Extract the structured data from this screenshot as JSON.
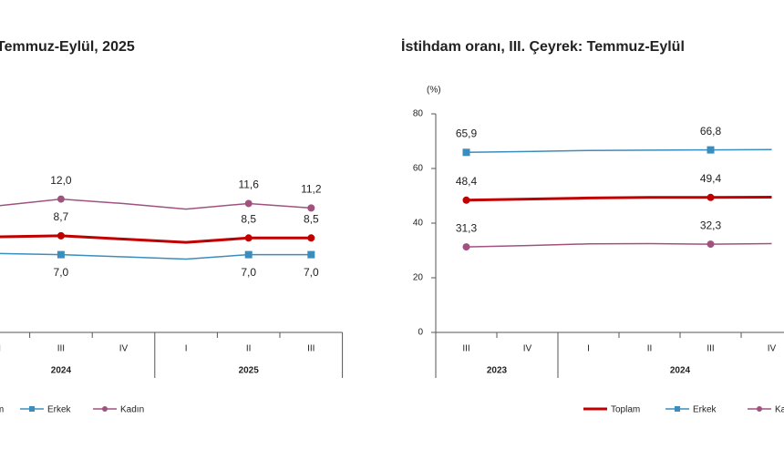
{
  "chart_data": [
    {
      "type": "line",
      "title": "Temmuz-Eylül, 2025",
      "categories": [
        "II",
        "III",
        "IV",
        "I",
        "II",
        "III"
      ],
      "x_groups": [
        "2024",
        "2024",
        "2024",
        "2025",
        "2025",
        "2025"
      ],
      "ylim": [
        0,
        25
      ],
      "series": [
        {
          "name": "Toplam",
          "color": "#c00000",
          "marker": "circle",
          "label_position": "above",
          "values": [
            8.6,
            8.7,
            8.4,
            8.1,
            8.5,
            8.5
          ],
          "value_labels": [
            null,
            "8,7",
            null,
            null,
            "8,5",
            "8,5"
          ]
        },
        {
          "name": "Erkek",
          "color": "#3b8dbd",
          "marker": "square",
          "label_position": "below",
          "values": [
            7.1,
            7.0,
            6.8,
            6.6,
            7.0,
            7.0
          ],
          "value_labels": [
            null,
            "7,0",
            null,
            null,
            "7,0",
            "7,0"
          ]
        },
        {
          "name": "Kadın",
          "color": "#a0527f",
          "marker": "circle",
          "label_position": "above",
          "values": [
            11.4,
            12.0,
            11.6,
            11.1,
            11.6,
            11.2
          ],
          "value_labels": [
            null,
            "12,0",
            null,
            null,
            "11,6",
            "11,2"
          ]
        }
      ]
    },
    {
      "type": "line",
      "title": "İstihdam oranı, III. Çeyrek: Temmuz-Eylül",
      "y_label": "(%)",
      "categories": [
        "III",
        "IV",
        "I",
        "II",
        "III",
        "IV"
      ],
      "x_groups": [
        "2023",
        "2023",
        "2024",
        "2024",
        "2024",
        "2024"
      ],
      "ylim": [
        0,
        80
      ],
      "yticks": [
        0,
        20,
        40,
        60,
        80
      ],
      "series": [
        {
          "name": "Toplam",
          "color": "#c00000",
          "marker": "circle",
          "label_position": "above",
          "values": [
            48.4,
            48.8,
            49.2,
            49.4,
            49.4,
            49.5
          ],
          "value_labels": [
            "48,4",
            null,
            null,
            null,
            "49,4",
            null
          ]
        },
        {
          "name": "Erkek",
          "color": "#3b8dbd",
          "marker": "square",
          "label_position": "above",
          "values": [
            65.9,
            66.2,
            66.6,
            66.7,
            66.8,
            66.9
          ],
          "value_labels": [
            "65,9",
            null,
            null,
            null,
            "66,8",
            null
          ]
        },
        {
          "name": "Kadın",
          "color": "#a0527f",
          "marker": "circle",
          "label_position": "above",
          "values": [
            31.3,
            31.8,
            32.4,
            32.5,
            32.3,
            32.5
          ],
          "value_labels": [
            "31,3",
            null,
            null,
            null,
            "32,3",
            null
          ]
        }
      ]
    }
  ]
}
